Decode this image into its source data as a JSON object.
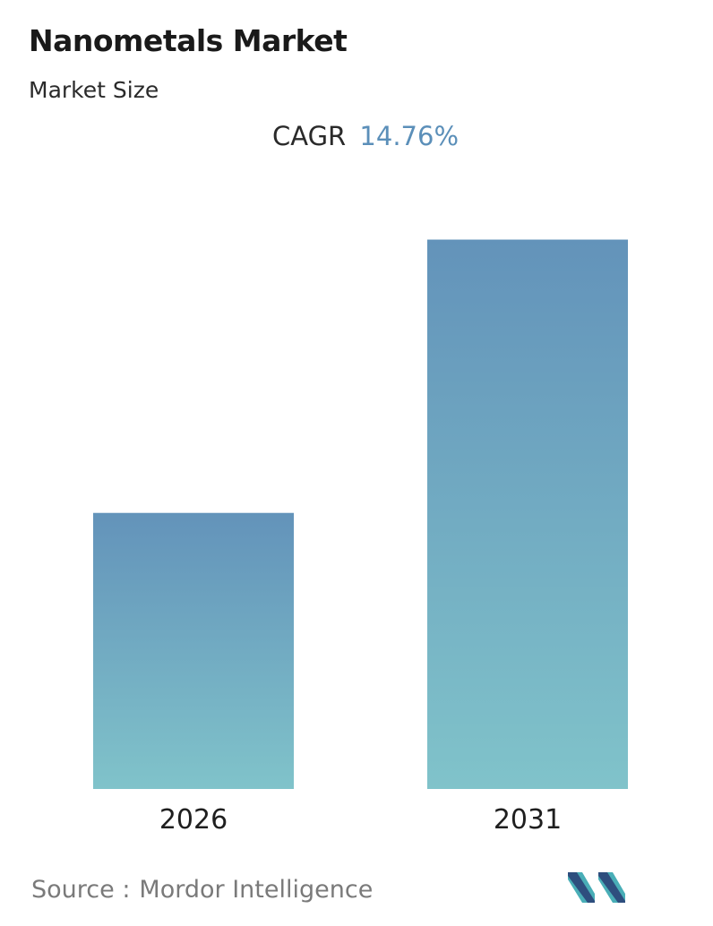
{
  "header": {
    "title": "Nanometals Market",
    "subtitle": "Market Size"
  },
  "cagr": {
    "label": "CAGR",
    "value": "14.76%"
  },
  "chart_data": {
    "type": "bar",
    "categories": [
      "2026",
      "2031"
    ],
    "values": [
      1,
      1.99
    ],
    "title": "Nanometals Market",
    "subtitle": "Market Size",
    "ylim": [
      0,
      2.0
    ],
    "grid": false,
    "legend": "none",
    "colors": {
      "bar_top": "#6393ba",
      "bar_bottom": "#80c3ca"
    }
  },
  "source": {
    "label": "Source :",
    "name": "Mordor Intelligence"
  },
  "logo": {
    "icon": "mordor-intelligence-logo-icon",
    "colors": [
      "#2e4e7e",
      "#49aeb7"
    ]
  }
}
